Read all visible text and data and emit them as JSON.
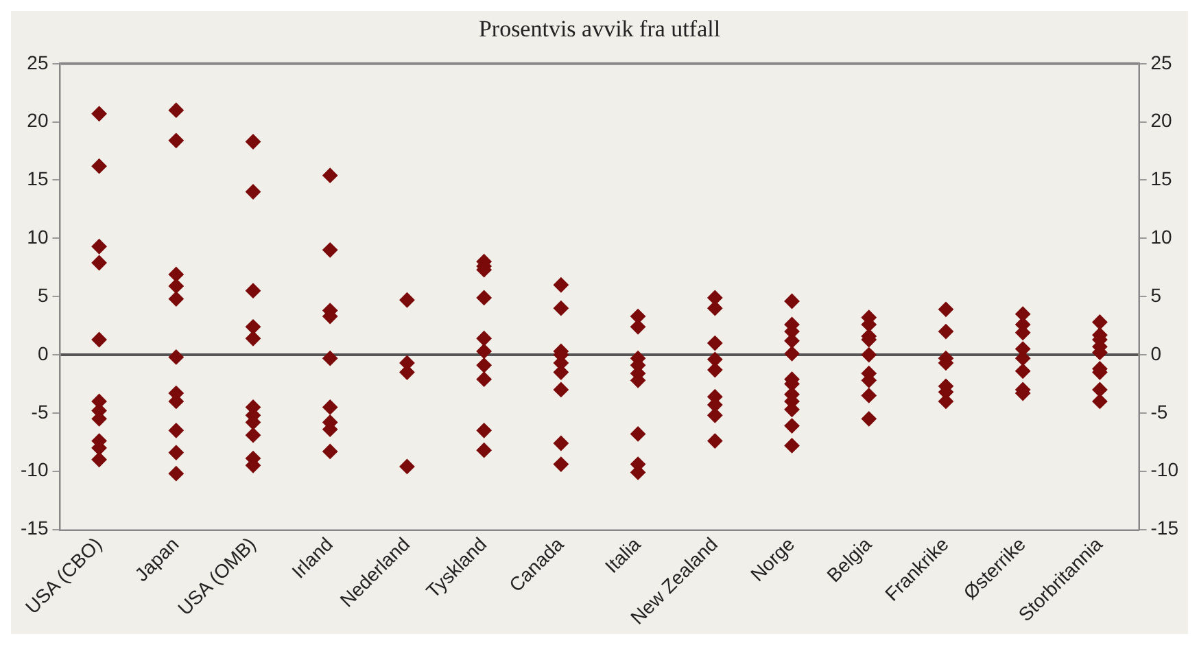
{
  "chart_data": {
    "type": "scatter",
    "title": "Prosentvis avvik fra utfall",
    "categories": [
      "USA (CBO)",
      "Japan",
      "USA (OMB)",
      "Irland",
      "Nederland",
      "Tyskland",
      "Canada",
      "Italia",
      "New Zealand",
      "Norge",
      "Belgia",
      "Frankrike",
      "Østerrike",
      "Storbritannia"
    ],
    "series": [
      {
        "color": "#7b0a0a",
        "marker": "diamond",
        "x": [
          "USA (CBO)",
          "USA (CBO)",
          "USA (CBO)",
          "USA (CBO)",
          "USA (CBO)",
          "USA (CBO)",
          "USA (CBO)",
          "USA (CBO)",
          "USA (CBO)",
          "USA (CBO)",
          "USA (CBO)",
          "Japan",
          "Japan",
          "Japan",
          "Japan",
          "Japan",
          "Japan",
          "Japan",
          "Japan",
          "Japan",
          "Japan",
          "Japan",
          "USA (OMB)",
          "USA (OMB)",
          "USA (OMB)",
          "USA (OMB)",
          "USA (OMB)",
          "USA (OMB)",
          "USA (OMB)",
          "USA (OMB)",
          "USA (OMB)",
          "USA (OMB)",
          "USA (OMB)",
          "Irland",
          "Irland",
          "Irland",
          "Irland",
          "Irland",
          "Irland",
          "Irland",
          "Irland",
          "Irland",
          "Nederland",
          "Nederland",
          "Nederland",
          "Nederland",
          "Tyskland",
          "Tyskland",
          "Tyskland",
          "Tyskland",
          "Tyskland",
          "Tyskland",
          "Tyskland",
          "Tyskland",
          "Tyskland",
          "Tyskland",
          "Canada",
          "Canada",
          "Canada",
          "Canada",
          "Canada",
          "Canada",
          "Canada",
          "Canada",
          "Canada",
          "Italia",
          "Italia",
          "Italia",
          "Italia",
          "Italia",
          "Italia",
          "Italia",
          "Italia",
          "Italia",
          "New Zealand",
          "New Zealand",
          "New Zealand",
          "New Zealand",
          "New Zealand",
          "New Zealand",
          "New Zealand",
          "New Zealand",
          "New Zealand",
          "Norge",
          "Norge",
          "Norge",
          "Norge",
          "Norge",
          "Norge",
          "Norge",
          "Norge",
          "Norge",
          "Norge",
          "Norge",
          "Norge",
          "Belgia",
          "Belgia",
          "Belgia",
          "Belgia",
          "Belgia",
          "Belgia",
          "Belgia",
          "Belgia",
          "Belgia",
          "Frankrike",
          "Frankrike",
          "Frankrike",
          "Frankrike",
          "Frankrike",
          "Frankrike",
          "Frankrike",
          "Østerrike",
          "Østerrike",
          "Østerrike",
          "Østerrike",
          "Østerrike",
          "Østerrike",
          "Østerrike",
          "Østerrike",
          "Storbritannia",
          "Storbritannia",
          "Storbritannia",
          "Storbritannia",
          "Storbritannia",
          "Storbritannia",
          "Storbritannia",
          "Storbritannia",
          "Storbritannia"
        ],
        "values": [
          20.7,
          16.2,
          9.3,
          7.9,
          1.3,
          -4.0,
          -4.8,
          -5.5,
          -7.4,
          -8.0,
          -9.0,
          21.0,
          18.4,
          6.9,
          5.9,
          4.8,
          -0.2,
          -3.3,
          -4.0,
          -6.5,
          -8.4,
          -10.2,
          18.3,
          14.0,
          5.5,
          2.4,
          1.4,
          -4.5,
          -5.2,
          -5.8,
          -6.9,
          -8.9,
          -9.5,
          15.4,
          9.0,
          3.8,
          3.3,
          -0.3,
          -4.5,
          -5.8,
          -6.4,
          -8.3,
          4.7,
          -0.7,
          -1.5,
          -9.6,
          8.0,
          7.6,
          7.3,
          4.9,
          1.4,
          0.3,
          -0.9,
          -2.1,
          -6.5,
          -8.2,
          6.0,
          4.0,
          0.3,
          0.0,
          -0.7,
          -1.5,
          -3.0,
          -7.6,
          -9.4,
          3.3,
          2.4,
          -0.3,
          -0.9,
          -1.6,
          -2.2,
          -6.8,
          -9.4,
          -10.1,
          4.9,
          4.0,
          1.0,
          -0.4,
          -1.3,
          -3.6,
          -4.3,
          -5.2,
          -7.4,
          4.6,
          2.6,
          2.0,
          1.2,
          0.1,
          -2.1,
          -2.5,
          -3.4,
          -4.0,
          -4.7,
          -6.1,
          -7.8,
          3.2,
          2.6,
          1.6,
          1.3,
          0.0,
          -1.6,
          -2.2,
          -3.5,
          -5.5,
          3.9,
          2.0,
          -0.3,
          -0.7,
          -2.7,
          -3.2,
          -4.0,
          3.5,
          2.6,
          1.9,
          0.5,
          -0.3,
          -1.4,
          -3.0,
          -3.3,
          2.8,
          1.7,
          1.3,
          0.7,
          0.2,
          -1.2,
          -1.5,
          -3.0,
          -4.0
        ]
      }
    ],
    "ylim": [
      -15,
      25
    ],
    "yticks": [
      -15,
      -10,
      -5,
      0,
      5,
      10,
      15,
      20,
      25
    ],
    "y2lim": [
      -15,
      25
    ],
    "y2ticks": [
      -15,
      -10,
      -5,
      0,
      5,
      10,
      15,
      20,
      25
    ],
    "ref_lines": [
      {
        "axis": "y",
        "value": 0,
        "color": "#555555"
      }
    ],
    "legend": false
  }
}
